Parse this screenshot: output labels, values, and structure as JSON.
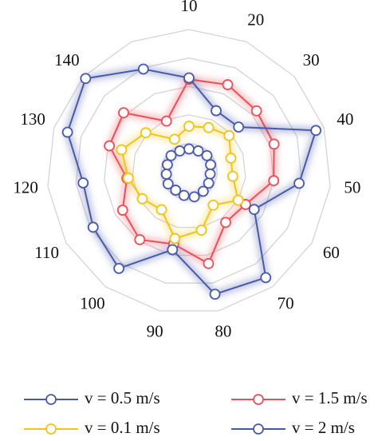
{
  "chart_data": {
    "type": "radar",
    "categories": [
      "10",
      "20",
      "30",
      "40",
      "50",
      "60",
      "70",
      "80",
      "90",
      "100",
      "110",
      "120",
      "130",
      "140",
      null
    ],
    "rlim": [
      0,
      10
    ],
    "rticks": [
      2,
      4,
      6,
      8,
      10
    ],
    "grid": true,
    "series": [
      {
        "name": "v = 0.5 m/s",
        "color": "#4a5aa8",
        "values": [
          1.6,
          1.6,
          1.7,
          1.6,
          1.5,
          1.6,
          1.7,
          1.8,
          1.7,
          1.6,
          1.7,
          1.6,
          1.6,
          1.7,
          1.6
        ]
      },
      {
        "name": "v = 1.5 m/s",
        "color": "#e8505a",
        "values": [
          6.5,
          6.7,
          6.4,
          6.3,
          6.0,
          4.6,
          4.4,
          6.6,
          5.2,
          5.9,
          5.4,
          4.4,
          5.9,
          6.2,
          3.9
        ]
      },
      {
        "name": "v = 0.1 m/s",
        "color": "#f0c419",
        "values": [
          3.2,
          3.4,
          3.8,
          3.1,
          3.1,
          4.0,
          2.9,
          4.2,
          4.8,
          3.3,
          3.8,
          4.3,
          5.0,
          4.1,
          2.5
        ]
      },
      {
        "name": "v = 2 m/s",
        "color": "#4a5aa8",
        "values": [
          6.6,
          4.7,
          4.7,
          9.4,
          7.8,
          5.3,
          9.2,
          8.8,
          5.6,
          8.4,
          7.8,
          7.5,
          9.0,
          9.8,
          7.9
        ]
      }
    ]
  }
}
